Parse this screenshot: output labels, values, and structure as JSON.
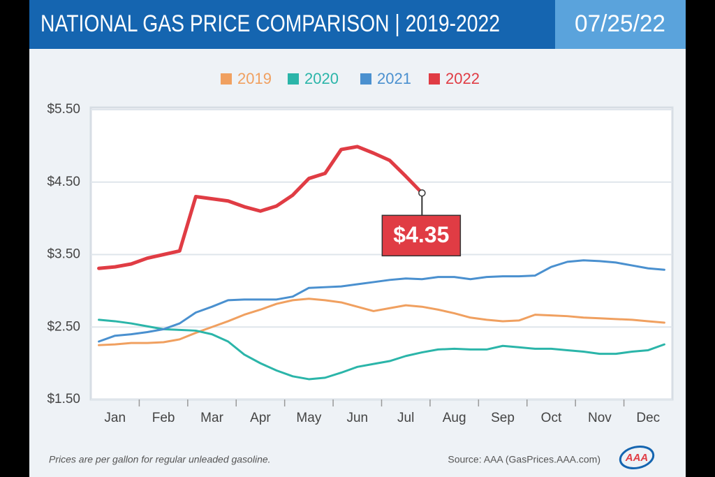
{
  "header": {
    "title": "NATIONAL GAS PRICE COMPARISON | 2019-2022",
    "date": "07/25/22"
  },
  "chart_data": {
    "type": "line",
    "categories": [
      null,
      "Jan",
      null,
      null,
      "Feb",
      null,
      null,
      "Mar",
      null,
      null,
      "Apr",
      null,
      null,
      "May",
      null,
      null,
      "Jun",
      null,
      null,
      "Jul",
      null,
      null,
      "Aug",
      null,
      null,
      "Sep",
      null,
      null,
      "Oct",
      null,
      null,
      "Nov",
      null,
      null,
      "Dec",
      null
    ],
    "series": [
      {
        "name": "2019",
        "color": "#f0a060",
        "values": [
          2.25,
          2.26,
          2.28,
          2.28,
          2.29,
          2.33,
          2.42,
          2.5,
          2.58,
          2.67,
          2.74,
          2.82,
          2.87,
          2.89,
          2.87,
          2.84,
          2.78,
          2.72,
          2.76,
          2.8,
          2.78,
          2.74,
          2.69,
          2.63,
          2.6,
          2.58,
          2.59,
          2.67,
          2.66,
          2.65,
          2.63,
          2.62,
          2.61,
          2.6,
          2.58,
          2.56
        ]
      },
      {
        "name": "2020",
        "color": "#2bb5a9",
        "values": [
          2.6,
          2.58,
          2.55,
          2.51,
          2.47,
          2.46,
          2.45,
          2.4,
          2.3,
          2.12,
          2.0,
          1.9,
          1.82,
          1.78,
          1.8,
          1.87,
          1.95,
          1.99,
          2.03,
          2.1,
          2.15,
          2.19,
          2.2,
          2.19,
          2.19,
          2.24,
          2.22,
          2.2,
          2.2,
          2.18,
          2.16,
          2.13,
          2.13,
          2.16,
          2.18,
          2.26
        ]
      },
      {
        "name": "2021",
        "color": "#4a90cf",
        "values": [
          2.3,
          2.38,
          2.4,
          2.43,
          2.47,
          2.55,
          2.7,
          2.78,
          2.87,
          2.88,
          2.88,
          2.88,
          2.92,
          3.04,
          3.05,
          3.06,
          3.09,
          3.12,
          3.15,
          3.17,
          3.16,
          3.19,
          3.19,
          3.16,
          3.19,
          3.2,
          3.2,
          3.21,
          3.33,
          3.4,
          3.42,
          3.41,
          3.39,
          3.35,
          3.31,
          3.29
        ]
      },
      {
        "name": "2022",
        "color": "#e03c44",
        "values": [
          3.31,
          3.33,
          3.37,
          3.45,
          3.5,
          3.55,
          4.3,
          4.27,
          4.24,
          4.16,
          4.1,
          4.17,
          4.32,
          4.55,
          4.62,
          4.95,
          4.99,
          4.9,
          4.8,
          4.58,
          4.35,
          null,
          null,
          null,
          null,
          null,
          null,
          null,
          null,
          null,
          null,
          null,
          null,
          null,
          null,
          null
        ],
        "value_labels": [
          null,
          null,
          null,
          null,
          null,
          null,
          null,
          null,
          null,
          null,
          null,
          null,
          null,
          null,
          null,
          null,
          null,
          null,
          null,
          null,
          "$4.35",
          null,
          null,
          null,
          null,
          null,
          null,
          null,
          null,
          null,
          null,
          null,
          null,
          null,
          null,
          null
        ]
      }
    ],
    "ylim": [
      1.5,
      5.5
    ],
    "yticks": [
      {
        "value": 1.5,
        "label": "$1.50"
      },
      {
        "value": 2.5,
        "label": "$2.50"
      },
      {
        "value": 3.5,
        "label": "$3.50"
      },
      {
        "value": 4.5,
        "label": "$4.50"
      },
      {
        "value": 5.5,
        "label": "$5.50"
      }
    ],
    "grid": true
  },
  "footer": {
    "note": "Prices are per gallon for regular unleaded gasoline.",
    "source": "Source: AAA (GasPrices.AAA.com)",
    "logo": "AAA"
  }
}
